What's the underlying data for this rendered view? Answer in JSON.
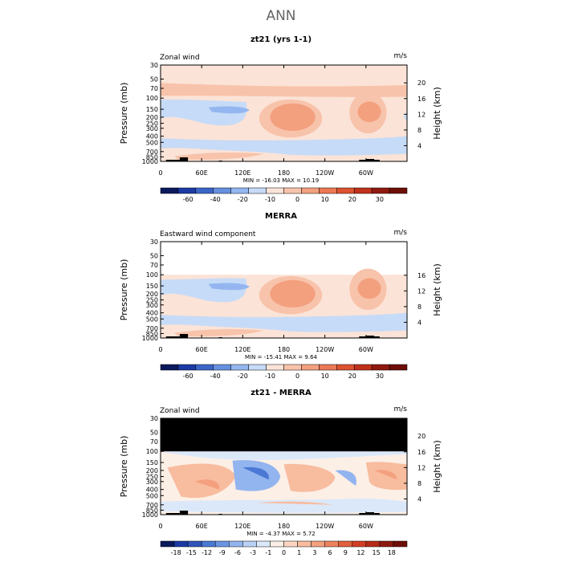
{
  "page": {
    "title": "ANN"
  },
  "colors": {
    "frame": "#000000",
    "mask": "#000000",
    "topo": "#000000",
    "abs_scale": [
      "#0b1a5c",
      "#1c3aa5",
      "#3b66c8",
      "#6690df",
      "#94b6f0",
      "#c6dbf7",
      "#fbe3d7",
      "#f8c3ab",
      "#f3a07f",
      "#eb7854",
      "#dd5230",
      "#c0311b",
      "#8f1a10",
      "#6d0e07"
    ],
    "diff_scale": [
      "#0b1a5c",
      "#1c3aa5",
      "#2f55bc",
      "#4a78d4",
      "#6b95e3",
      "#92b4ef",
      "#b9d1f5",
      "#dbe8fa",
      "#fcefe6",
      "#fbd6c2",
      "#f8bc9f",
      "#f4a07e",
      "#ee825e",
      "#e25f3c",
      "#d23f24",
      "#b72a17",
      "#8f1a10",
      "#6d0e07"
    ]
  },
  "chart_data": [
    {
      "type": "contour",
      "id": "model",
      "title": "zt21 (yrs 1-1)",
      "left_label": "Zonal wind",
      "units": "m/s",
      "ylabel": "Pressure (mb)",
      "ylabel_right": "Height (km)",
      "y_ticks": [
        "30",
        "50",
        "70",
        "100",
        "150",
        "200",
        "250",
        "300",
        "400",
        "500",
        "700",
        "850",
        "1000"
      ],
      "y_right_ticks": [
        "20",
        "16",
        "12",
        "8",
        "4"
      ],
      "x_ticks": [
        "0",
        "60E",
        "120E",
        "180",
        "120W",
        "60W"
      ],
      "xlim": [
        0,
        360
      ],
      "stats": "MIN = -16.03   MAX =  10.19",
      "min": -16.03,
      "max": 10.19,
      "colorbar": {
        "scale": "abs",
        "labels": [
          "-60",
          "-40",
          "-20",
          "-10",
          "0",
          "10",
          "20",
          "30"
        ]
      }
    },
    {
      "type": "contour",
      "id": "obs",
      "title": "MERRA",
      "left_label": "Eastward wind component",
      "units": "m/s",
      "ylabel": "Pressure (mb)",
      "ylabel_right": "Height (km)",
      "y_ticks": [
        "30",
        "50",
        "70",
        "100",
        "150",
        "200",
        "250",
        "300",
        "400",
        "500",
        "700",
        "850",
        "1000"
      ],
      "y_right_ticks": [
        "16",
        "12",
        "8",
        "4"
      ],
      "x_ticks": [
        "0",
        "60E",
        "120E",
        "180",
        "120W",
        "60W"
      ],
      "xlim": [
        0,
        360
      ],
      "stats": "MIN = -15.41   MAX =   9.64",
      "min": -15.41,
      "max": 9.64,
      "colorbar": {
        "scale": "abs",
        "labels": [
          "-60",
          "-40",
          "-20",
          "-10",
          "0",
          "10",
          "20",
          "30"
        ]
      }
    },
    {
      "type": "contour",
      "id": "diff",
      "title": "zt21 - MERRA",
      "left_label": "Zonal wind",
      "units": "m/s",
      "ylabel": "Pressure (mb)",
      "ylabel_right": "Height (km)",
      "y_ticks": [
        "30",
        "50",
        "70",
        "100",
        "150",
        "200",
        "250",
        "300",
        "400",
        "500",
        "700",
        "850",
        "1000"
      ],
      "y_right_ticks": [
        "20",
        "16",
        "12",
        "8",
        "4"
      ],
      "x_ticks": [
        "0",
        "60E",
        "120E",
        "180",
        "120W",
        "60W"
      ],
      "xlim": [
        0,
        360
      ],
      "stats": "MIN =  -4.37   MAX =   5.72",
      "min": -4.37,
      "max": 5.72,
      "colorbar": {
        "scale": "diff",
        "labels": [
          "-18",
          "-15",
          "-12",
          "-9",
          "-6",
          "-3",
          "-1",
          "0",
          "1",
          "3",
          "6",
          "9",
          "12",
          "15",
          "18"
        ]
      }
    }
  ]
}
